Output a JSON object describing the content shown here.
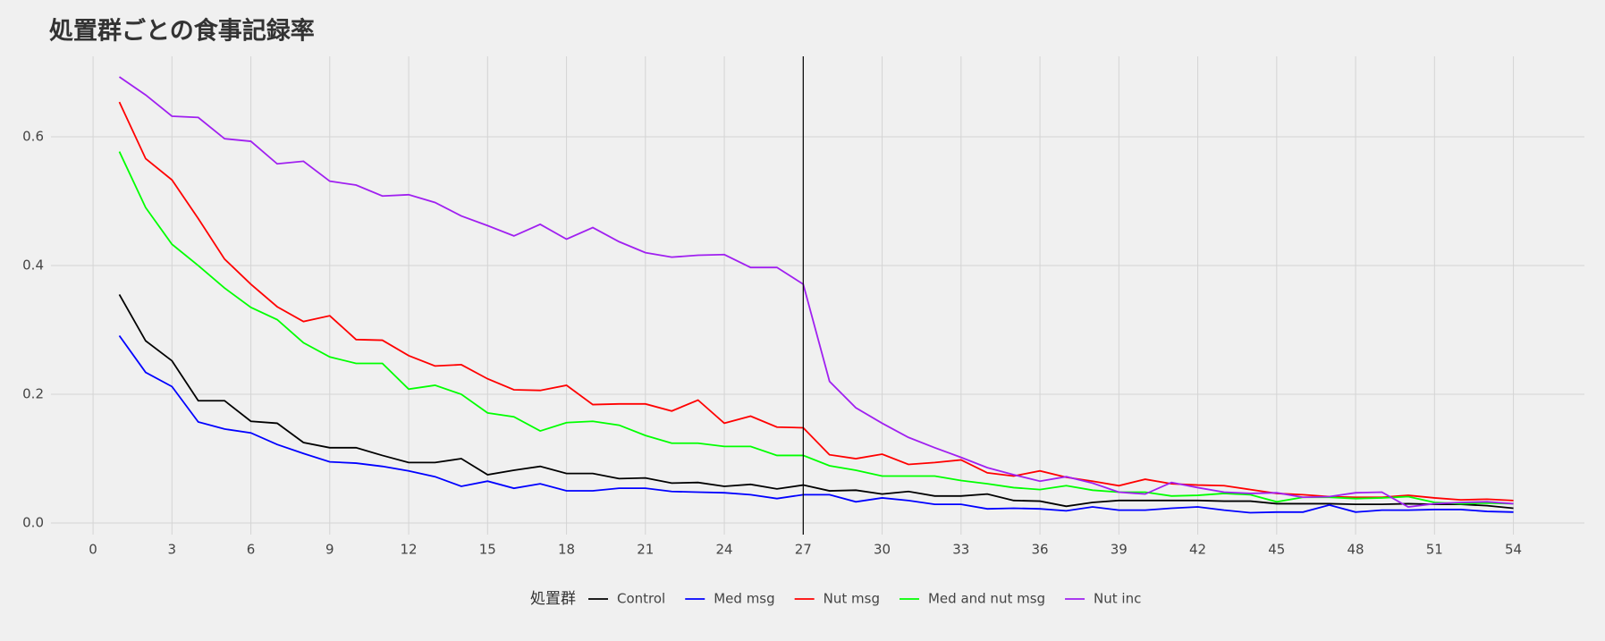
{
  "chart_data": {
    "type": "line",
    "title": "処置群ごとの食事記録率",
    "x": [
      1,
      2,
      3,
      4,
      5,
      6,
      7,
      8,
      9,
      10,
      11,
      12,
      13,
      14,
      15,
      16,
      17,
      18,
      19,
      20,
      21,
      22,
      23,
      24,
      25,
      26,
      27,
      28,
      29,
      30,
      31,
      32,
      33,
      34,
      35,
      36,
      37,
      38,
      39,
      40,
      41,
      42,
      43,
      44,
      45,
      46,
      47,
      48,
      49,
      50,
      51,
      52,
      53,
      54
    ],
    "series": [
      {
        "name": "Control",
        "color": "#000000",
        "values": [
          0.355,
          0.283,
          0.252,
          0.19,
          0.19,
          0.158,
          0.155,
          0.125,
          0.117,
          0.117,
          0.105,
          0.094,
          0.094,
          0.1,
          0.075,
          0.082,
          0.088,
          0.077,
          0.077,
          0.069,
          0.07,
          0.062,
          0.063,
          0.057,
          0.06,
          0.053,
          0.059,
          0.05,
          0.051,
          0.045,
          0.049,
          0.042,
          0.042,
          0.045,
          0.035,
          0.034,
          0.026,
          0.032,
          0.035,
          0.035,
          0.035,
          0.035,
          0.034,
          0.034,
          0.03,
          0.03,
          0.03,
          0.029,
          0.029,
          0.03,
          0.029,
          0.029,
          0.027,
          0.023
        ]
      },
      {
        "name": "Med msg",
        "color": "#0000ff",
        "values": [
          0.291,
          0.234,
          0.212,
          0.157,
          0.146,
          0.14,
          0.122,
          0.108,
          0.095,
          0.093,
          0.088,
          0.081,
          0.072,
          0.057,
          0.065,
          0.054,
          0.061,
          0.05,
          0.05,
          0.054,
          0.054,
          0.049,
          0.048,
          0.047,
          0.044,
          0.038,
          0.044,
          0.044,
          0.033,
          0.039,
          0.035,
          0.029,
          0.029,
          0.022,
          0.023,
          0.022,
          0.019,
          0.025,
          0.02,
          0.02,
          0.023,
          0.025,
          0.02,
          0.016,
          0.017,
          0.017,
          0.028,
          0.017,
          0.02,
          0.02,
          0.021,
          0.021,
          0.018,
          0.017
        ]
      },
      {
        "name": "Nut msg",
        "color": "#ff0000",
        "values": [
          0.654,
          0.566,
          0.533,
          0.473,
          0.41,
          0.371,
          0.336,
          0.313,
          0.322,
          0.285,
          0.284,
          0.26,
          0.244,
          0.246,
          0.224,
          0.207,
          0.206,
          0.214,
          0.184,
          0.185,
          0.185,
          0.174,
          0.191,
          0.155,
          0.166,
          0.149,
          0.148,
          0.106,
          0.1,
          0.107,
          0.091,
          0.094,
          0.098,
          0.078,
          0.073,
          0.081,
          0.071,
          0.065,
          0.058,
          0.068,
          0.061,
          0.059,
          0.058,
          0.052,
          0.046,
          0.044,
          0.041,
          0.04,
          0.04,
          0.043,
          0.039,
          0.036,
          0.037,
          0.035
        ]
      },
      {
        "name": "Med and nut msg",
        "color": "#00ff00",
        "values": [
          0.577,
          0.49,
          0.433,
          0.4,
          0.365,
          0.335,
          0.316,
          0.28,
          0.258,
          0.248,
          0.248,
          0.208,
          0.214,
          0.2,
          0.171,
          0.165,
          0.143,
          0.156,
          0.158,
          0.152,
          0.136,
          0.124,
          0.124,
          0.119,
          0.119,
          0.105,
          0.105,
          0.089,
          0.082,
          0.073,
          0.073,
          0.073,
          0.066,
          0.061,
          0.055,
          0.052,
          0.058,
          0.051,
          0.048,
          0.048,
          0.042,
          0.043,
          0.046,
          0.044,
          0.033,
          0.04,
          0.04,
          0.038,
          0.039,
          0.041,
          0.032,
          0.03,
          0.031,
          0.03
        ]
      },
      {
        "name": "Nut inc",
        "color": "#a020f0",
        "values": [
          0.693,
          0.665,
          0.632,
          0.63,
          0.597,
          0.593,
          0.558,
          0.562,
          0.531,
          0.525,
          0.508,
          0.51,
          0.498,
          0.477,
          0.462,
          0.446,
          0.464,
          0.441,
          0.459,
          0.437,
          0.42,
          0.413,
          0.416,
          0.417,
          0.397,
          0.397,
          0.371,
          0.22,
          0.179,
          0.155,
          0.133,
          0.117,
          0.102,
          0.086,
          0.075,
          0.065,
          0.072,
          0.062,
          0.048,
          0.045,
          0.063,
          0.055,
          0.048,
          0.046,
          0.047,
          0.04,
          0.041,
          0.047,
          0.048,
          0.025,
          0.03,
          0.032,
          0.033,
          0.03
        ]
      }
    ],
    "xlim": [
      -1.6,
      56.7
    ],
    "ylim": [
      -0.018,
      0.725
    ],
    "xticks": [
      0,
      3,
      6,
      9,
      12,
      15,
      18,
      21,
      24,
      27,
      30,
      33,
      36,
      39,
      42,
      45,
      48,
      51,
      54
    ],
    "yticks": [
      {
        "value": 0,
        "label": "0.0"
      },
      0.2,
      0.4,
      0.6
    ],
    "vline": 27,
    "grid": true,
    "legend_title": "処置群",
    "legend_position": "bottom"
  }
}
